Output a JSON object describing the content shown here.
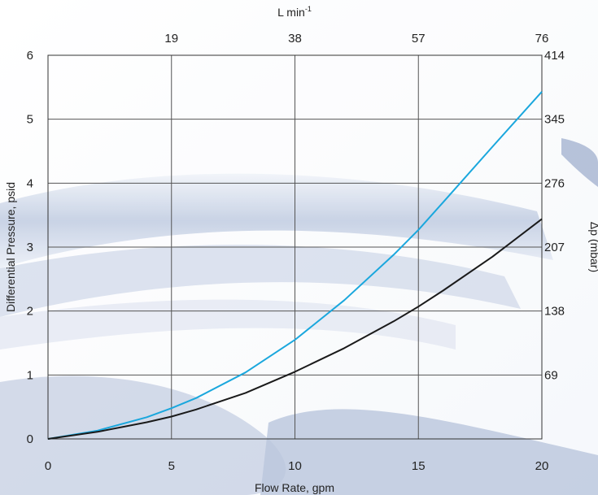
{
  "chart_data": {
    "type": "line",
    "xlabel": "Flow Rate, gpm",
    "ylabel": "Differential Pressure, psid",
    "top_axis_label": "L min",
    "top_axis_label_sup": "-1",
    "right_axis_label": "Δp (mbar)",
    "xlim": [
      0,
      20
    ],
    "ylim": [
      0,
      6
    ],
    "x_ticks": [
      0,
      5,
      10,
      15,
      20
    ],
    "y_ticks": [
      0,
      1,
      2,
      3,
      4,
      5,
      6
    ],
    "top_ticks": [
      {
        "x": 5,
        "label": "19"
      },
      {
        "x": 10,
        "label": "38"
      },
      {
        "x": 15,
        "label": "57"
      },
      {
        "x": 20,
        "label": "76"
      }
    ],
    "right_ticks": [
      {
        "y": 1,
        "label": "69"
      },
      {
        "y": 2,
        "label": "138"
      },
      {
        "y": 3,
        "label": "207"
      },
      {
        "y": 4,
        "label": "276"
      },
      {
        "y": 5,
        "label": "345"
      },
      {
        "y": 6,
        "label": "414"
      }
    ],
    "grid": true,
    "series": [
      {
        "color": "#1aa7dd",
        "x": [
          0,
          2,
          4,
          5,
          6,
          8,
          10,
          12,
          14,
          15,
          16,
          18,
          20
        ],
        "y": [
          0,
          0.13,
          0.34,
          0.48,
          0.64,
          1.04,
          1.55,
          2.17,
          2.88,
          3.27,
          3.7,
          4.57,
          5.43
        ]
      },
      {
        "color": "#1a1a1a",
        "x": [
          0,
          2,
          4,
          5,
          6,
          8,
          10,
          12,
          14,
          15,
          16,
          18,
          20
        ],
        "y": [
          0,
          0.11,
          0.26,
          0.35,
          0.46,
          0.72,
          1.05,
          1.42,
          1.84,
          2.07,
          2.32,
          2.85,
          3.44
        ]
      }
    ]
  }
}
